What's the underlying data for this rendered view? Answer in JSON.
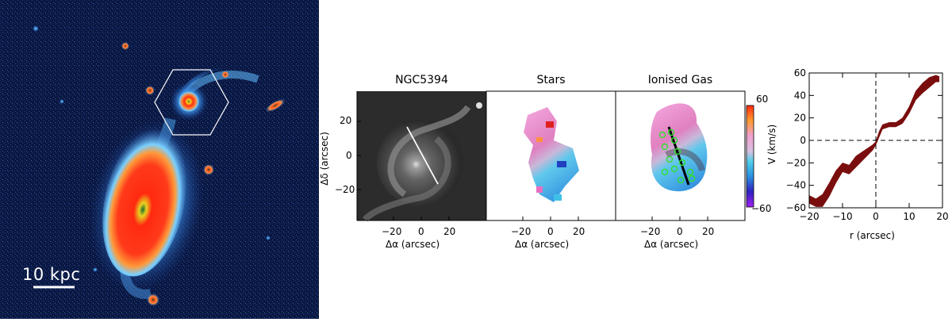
{
  "figure": {
    "scale_bar_label": "10 kpc",
    "panels": {
      "image": {
        "title": "NGC5394"
      },
      "stars": {
        "title": "Stars"
      },
      "gas": {
        "title": "Ionised Gas"
      }
    },
    "map_axes": {
      "xlabel": "Δα (arcsec)",
      "ylabel": "Δδ (arcsec)",
      "xticks": [
        "−20",
        "0",
        "20"
      ],
      "yticks": [
        "20",
        "0",
        "−20"
      ]
    },
    "colorbar": {
      "max_label": "60",
      "min_label": "−60"
    }
  },
  "chart_data": {
    "type": "area",
    "title": "",
    "xlabel": "r (arcsec)",
    "ylabel": "V (km/s)",
    "xlim": [
      -20,
      20
    ],
    "ylim": [
      -60,
      60
    ],
    "xticks": [
      -20,
      -10,
      0,
      10,
      20
    ],
    "yticks": [
      -60,
      -40,
      -20,
      0,
      20,
      40,
      60
    ],
    "reference_lines": {
      "x": 0,
      "y": 0,
      "style": "dashed"
    },
    "x": [
      -20,
      -18,
      -16,
      -14,
      -12,
      -10,
      -8,
      -6,
      -4,
      -2,
      -1,
      0,
      1,
      2,
      4,
      6,
      8,
      10,
      12,
      14,
      16,
      18,
      19
    ],
    "upper": [
      -49,
      -52,
      -48,
      -38,
      -27,
      -20,
      -22,
      -14,
      -10,
      -6,
      -4,
      -1,
      8,
      14,
      16,
      16,
      20,
      30,
      44,
      51,
      56,
      58,
      57
    ],
    "lower": [
      -56,
      -59,
      -59,
      -50,
      -38,
      -28,
      -30,
      -24,
      -18,
      -12,
      -9,
      -4,
      3,
      10,
      12,
      12,
      15,
      24,
      36,
      42,
      47,
      52,
      52
    ],
    "fill_color": "#7a0d0d"
  }
}
